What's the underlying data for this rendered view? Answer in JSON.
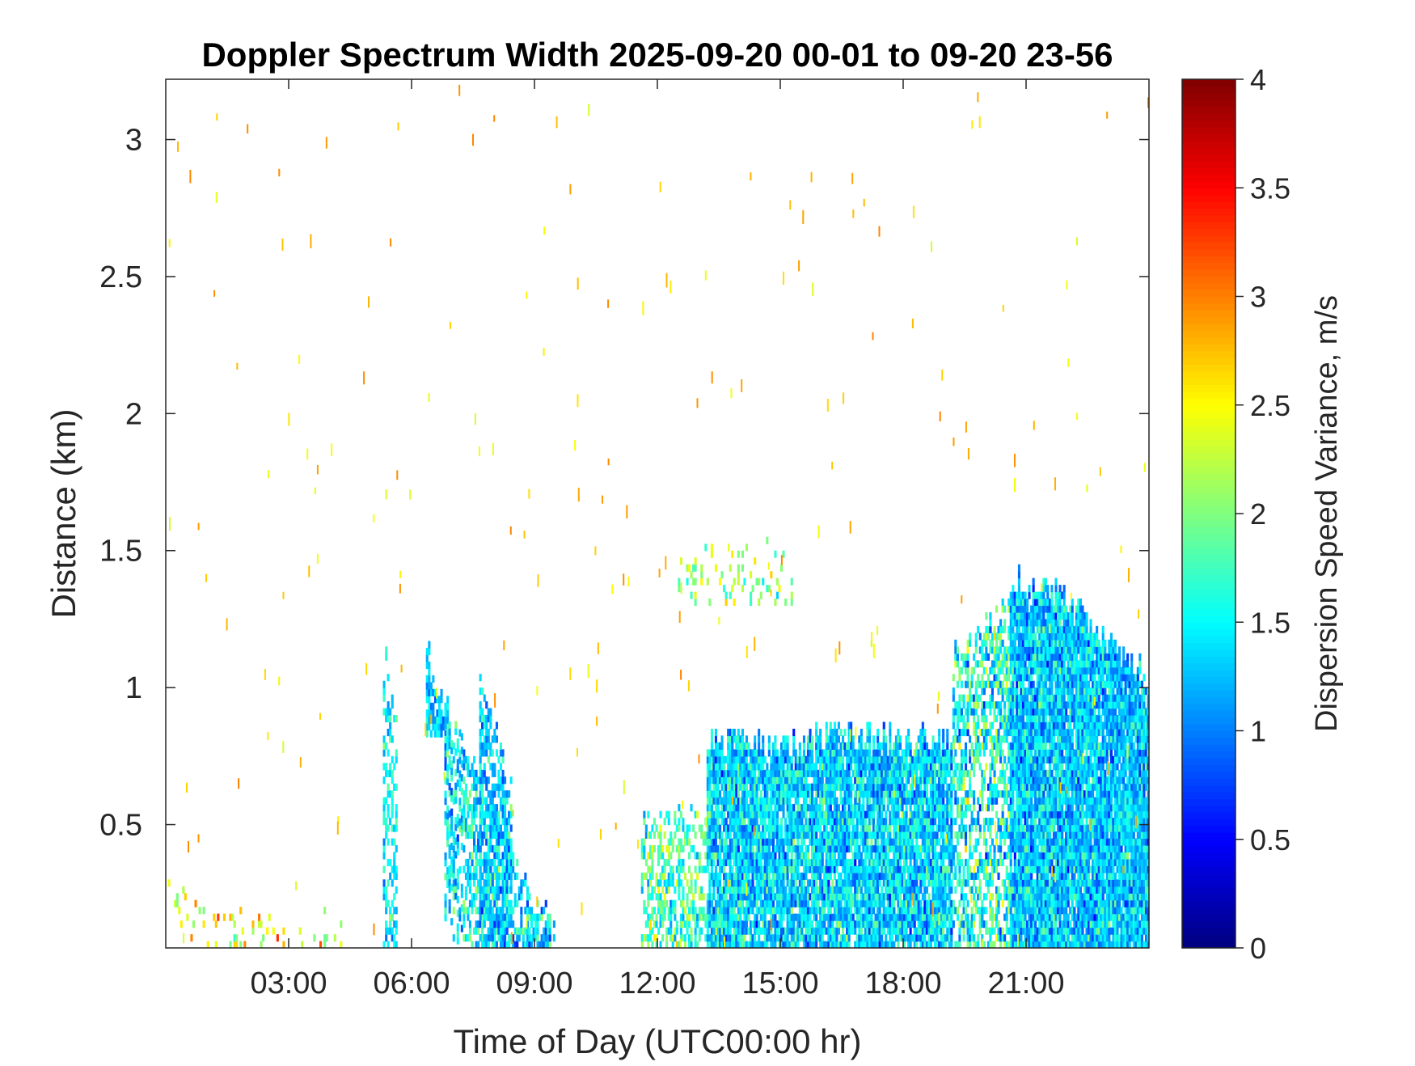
{
  "chart_data": {
    "type": "heatmap",
    "title": "Doppler Spectrum Width 2025-09-20 00-01 to 09-20 23-56",
    "xlabel": "Time of Day (UTC00:00 hr)",
    "ylabel": "Distance (km)",
    "colorbar_label": "Dispersion Speed Variance, m/s",
    "xlim_hours": [
      0,
      24
    ],
    "ylim_km": [
      0.05,
      3.22
    ],
    "clim": [
      0,
      4
    ],
    "colormap": "jet",
    "x_ticks": [
      {
        "hour": 3,
        "label": "03:00"
      },
      {
        "hour": 6,
        "label": "06:00"
      },
      {
        "hour": 9,
        "label": "09:00"
      },
      {
        "hour": 12,
        "label": "12:00"
      },
      {
        "hour": 15,
        "label": "15:00"
      },
      {
        "hour": 18,
        "label": "18:00"
      },
      {
        "hour": 21,
        "label": "21:00"
      }
    ],
    "y_ticks": [
      {
        "value": 0.5,
        "label": "0.5"
      },
      {
        "value": 1.0,
        "label": "1"
      },
      {
        "value": 1.5,
        "label": "1.5"
      },
      {
        "value": 2.0,
        "label": "2"
      },
      {
        "value": 2.5,
        "label": "2.5"
      },
      {
        "value": 3.0,
        "label": "3"
      }
    ],
    "colorbar_ticks": [
      {
        "value": 0,
        "label": "0"
      },
      {
        "value": 0.5,
        "label": "0.5"
      },
      {
        "value": 1,
        "label": "1"
      },
      {
        "value": 1.5,
        "label": "1.5"
      },
      {
        "value": 2,
        "label": "2"
      },
      {
        "value": 2.5,
        "label": "2.5"
      },
      {
        "value": 3,
        "label": "3"
      },
      {
        "value": 3.5,
        "label": "3.5"
      },
      {
        "value": 4,
        "label": "4"
      }
    ],
    "regions": [
      {
        "t0": 0.0,
        "t1": 4.3,
        "top0": 0.25,
        "top1": 0.12,
        "mean": 2.4,
        "spread": 0.7,
        "density": 0.12
      },
      {
        "t0": 5.3,
        "t1": 5.6,
        "top0": 1.12,
        "top1": 0.88,
        "mean": 1.5,
        "spread": 0.4,
        "density": 0.45
      },
      {
        "t0": 6.35,
        "t1": 6.85,
        "top0": 1.12,
        "top1": 0.92,
        "mean": 1.3,
        "spread": 0.4,
        "density": 0.8,
        "bottom0": 0.82,
        "bottom1": 0.82
      },
      {
        "t0": 6.8,
        "t1": 9.6,
        "top0": 0.9,
        "top1": 0.05,
        "mean": 1.4,
        "spread": 0.6,
        "density": 0.55,
        "band": 0.75
      },
      {
        "t0": 7.65,
        "t1": 8.45,
        "top0": 1.02,
        "top1": 0.62,
        "mean": 1.3,
        "spread": 0.5,
        "density": 0.65
      },
      {
        "t0": 11.6,
        "t1": 13.2,
        "top0": 0.5,
        "top1": 0.55,
        "mean": 1.8,
        "spread": 0.6,
        "density": 0.45
      },
      {
        "t0": 13.2,
        "t1": 19.2,
        "top0": 0.78,
        "top1": 0.82,
        "mean": 1.35,
        "spread": 0.55,
        "density": 0.9
      },
      {
        "t0": 12.5,
        "t1": 15.3,
        "top0": 1.48,
        "top1": 1.48,
        "mean": 2.1,
        "spread": 0.6,
        "density": 0.18,
        "bottom0": 1.3,
        "bottom1": 1.3
      },
      {
        "t0": 19.2,
        "t1": 20.6,
        "top0": 1.1,
        "top1": 1.3,
        "mean": 1.6,
        "spread": 0.7,
        "density": 0.55
      },
      {
        "t0": 20.6,
        "t1": 22.0,
        "top0": 1.38,
        "top1": 1.32,
        "mean": 1.3,
        "spread": 0.55,
        "density": 0.95
      },
      {
        "t0": 22.0,
        "t1": 24.0,
        "top0": 1.3,
        "top1": 1.02,
        "mean": 1.3,
        "spread": 0.5,
        "density": 0.95
      }
    ],
    "scatter_noise": {
      "count": 220,
      "value_range": [
        2.3,
        3.0
      ],
      "ylim_km": [
        0.05,
        3.2
      ]
    }
  }
}
